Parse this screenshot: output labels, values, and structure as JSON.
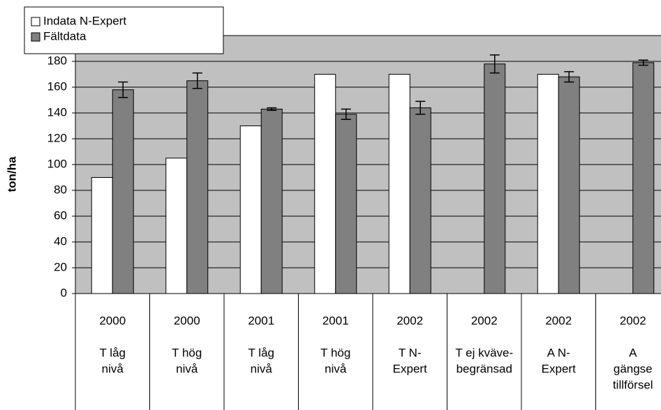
{
  "chart_data": {
    "type": "bar",
    "y_label": "ton/ha",
    "years": [
      "2000",
      "2000",
      "2001",
      "2001",
      "2002",
      "2002",
      "2002",
      "2002"
    ],
    "categories": [
      [
        "T låg",
        "nivå"
      ],
      [
        "T hög",
        "nivå"
      ],
      [
        "T låg",
        "nivå"
      ],
      [
        "T hög",
        "nivå"
      ],
      [
        "T N-",
        "Expert"
      ],
      [
        "T ej kväve-",
        "begränsad"
      ],
      [
        "A N-",
        "Expert"
      ],
      [
        "A",
        "gängse",
        "tillförsel"
      ]
    ],
    "series": [
      {
        "name": "Indata N-Expert",
        "color": "#ffffff",
        "values": [
          90,
          105,
          130,
          170,
          170,
          null,
          170,
          null
        ]
      },
      {
        "name": "Fältdata",
        "color": "#808080",
        "values": [
          158,
          165,
          143,
          139,
          144,
          178,
          168,
          179
        ],
        "errors": [
          6,
          6,
          1,
          4,
          5,
          7,
          4,
          2
        ]
      }
    ],
    "ylim": [
      0,
      200
    ],
    "yticks": [
      0,
      20,
      40,
      60,
      80,
      100,
      120,
      140,
      160,
      180
    ],
    "grid": true,
    "plot_background": "#c0c0c0",
    "legend": "top-left"
  }
}
